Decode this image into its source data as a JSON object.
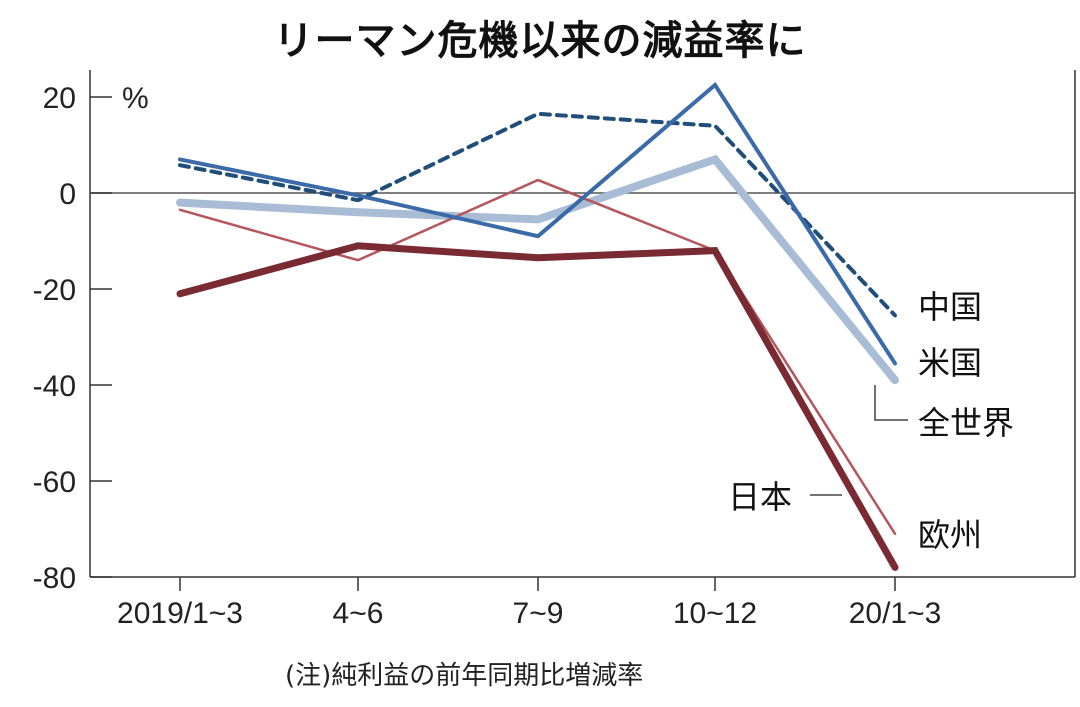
{
  "chart_data": {
    "type": "line",
    "title": "リーマン危機以来の減益率に",
    "note": "(注)純利益の前年同期比増減率",
    "ylabel": "%",
    "ylim": [
      -80,
      22
    ],
    "yticks": [
      20,
      0,
      -20,
      -40,
      -60,
      -80
    ],
    "ytick_labels": [
      "20",
      "0",
      "-20",
      "-40",
      "-60",
      "-80"
    ],
    "categories": [
      "2019/1~3",
      "4~6",
      "7~9",
      "10~12",
      "20/1~3"
    ],
    "grid": false,
    "series": [
      {
        "name": "中国",
        "color": "#1f4e79",
        "style": "dashed",
        "values": [
          5.8,
          -1.5,
          16.5,
          14,
          -25.5
        ]
      },
      {
        "name": "米国",
        "color": "#3a6aa8",
        "style": "solid",
        "values": [
          7,
          -0.5,
          -9,
          22.5,
          -35.5
        ]
      },
      {
        "name": "全世界",
        "color": "#a9bcd6",
        "style": "thick",
        "values": [
          -2,
          -4,
          -5.5,
          7,
          -39
        ]
      },
      {
        "name": "欧州",
        "color": "#b5555c",
        "style": "thin",
        "values": [
          -3.5,
          -14,
          2.7,
          -12,
          -71
        ]
      },
      {
        "name": "日本",
        "color": "#7a2a33",
        "style": "thick",
        "values": [
          -21,
          -11,
          -13.5,
          -12,
          -78
        ]
      }
    ]
  }
}
